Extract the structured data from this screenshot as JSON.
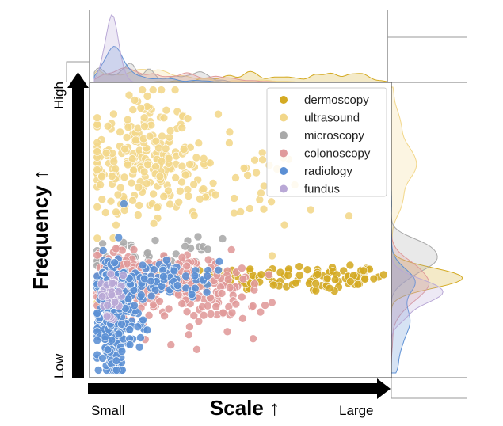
{
  "chart_data": {
    "type": "scatter",
    "title": "",
    "xlabel": "Scale ↑",
    "ylabel": "Frequency ↑",
    "x_ticks": [
      "Small",
      "Large"
    ],
    "y_ticks": [
      "Low",
      "High"
    ],
    "xlim": [
      0,
      100
    ],
    "ylim": [
      0,
      100
    ],
    "grid": false,
    "legend_position": "top-right",
    "marginals": "kde",
    "series": [
      {
        "name": "dermoscopy",
        "color": "#d4aa22",
        "clusters": [
          [
            48,
            33,
            14,
            2.2,
            40
          ],
          [
            72,
            33,
            14,
            2.5,
            55
          ],
          [
            88,
            34,
            7,
            2.5,
            25
          ]
        ]
      },
      {
        "name": "ultrasound",
        "color": "#f2d78a",
        "clusters": [
          [
            14,
            75,
            10,
            12,
            190
          ],
          [
            25,
            73,
            9,
            9,
            60
          ],
          [
            48,
            64,
            14,
            8,
            40
          ]
        ]
      },
      {
        "name": "microscopy",
        "color": "#a9a9a9",
        "clusters": [
          [
            18,
            40,
            12,
            3.5,
            45
          ]
        ]
      },
      {
        "name": "colonoscopy",
        "color": "#e09a9a",
        "clusters": [
          [
            10,
            33,
            5,
            5,
            120
          ],
          [
            22,
            31,
            9,
            5,
            110
          ],
          [
            38,
            30,
            12,
            6,
            70
          ],
          [
            42,
            23,
            10,
            6,
            30
          ]
        ]
      },
      {
        "name": "radiology",
        "color": "#5b8fd4",
        "clusters": [
          [
            6,
            18,
            2.5,
            12,
            230
          ],
          [
            10,
            22,
            5,
            8,
            90
          ],
          [
            20,
            33,
            7,
            3,
            60
          ],
          [
            30,
            33,
            9,
            3,
            30
          ]
        ]
      },
      {
        "name": "fundus",
        "color": "#b9a8d6",
        "clusters": [
          [
            6,
            28,
            2,
            4,
            40
          ]
        ]
      }
    ]
  }
}
